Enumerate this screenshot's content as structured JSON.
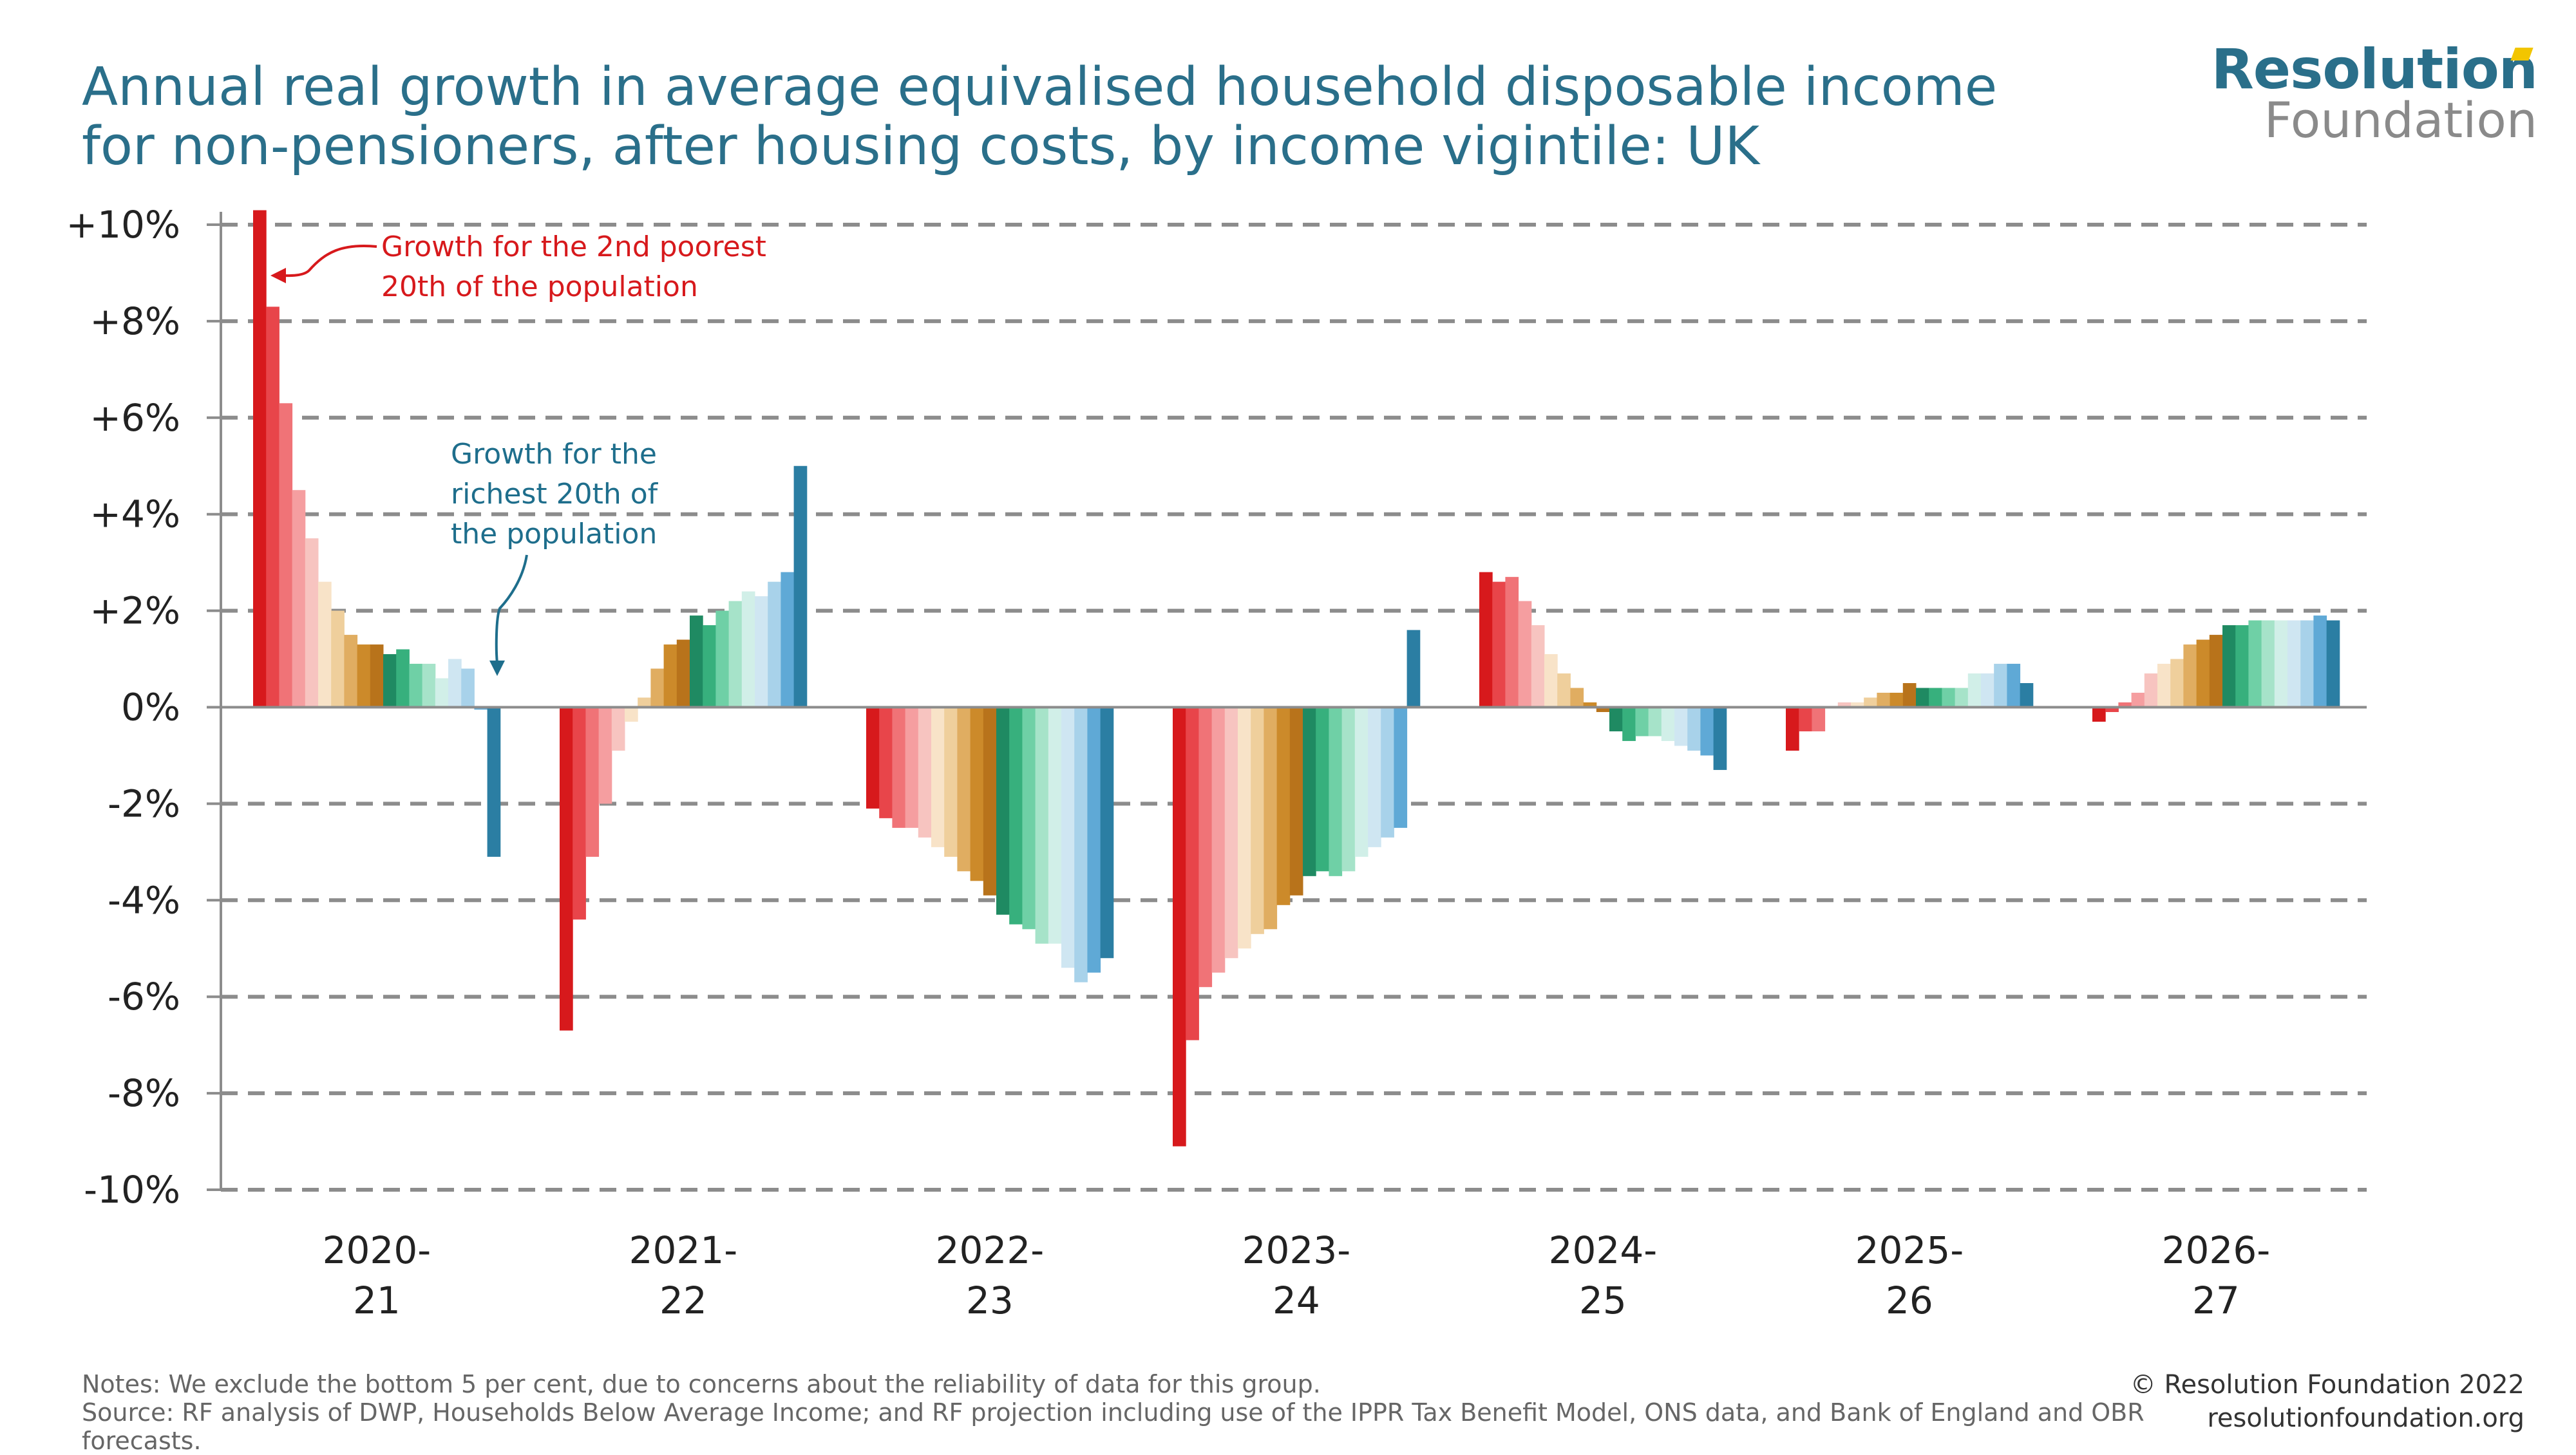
{
  "title": "Annual real growth in average equivalised household disposable income for non-pensioners, after housing costs, by income vigintile: UK",
  "logo": {
    "line1": "Resolution",
    "line2": "Foundation"
  },
  "footer": {
    "notes": "Notes: We exclude the bottom 5 per cent, due to concerns about the reliability of data for this group.",
    "source": "Source: RF analysis of DWP, Households Below Average Income; and RF projection including use of the IPPR Tax Benefit Model, ONS data, and Bank of England and OBR forecasts.",
    "copyright": "© Resolution Foundation 2022",
    "website": "resolutionfoundation.org"
  },
  "chart_data": {
    "type": "bar",
    "categories": [
      [
        "2020-",
        "21"
      ],
      [
        "2021-",
        "22"
      ],
      [
        "2022-",
        "23"
      ],
      [
        "2023-",
        "24"
      ],
      [
        "2024-",
        "25"
      ],
      [
        "2025-",
        "26"
      ],
      [
        "2026-",
        "27"
      ]
    ],
    "ylim": [
      -10,
      10
    ],
    "yticks": [
      "+10%",
      "+8%",
      "+6%",
      "+4%",
      "+2%",
      "0%",
      "-2%",
      "-4%",
      "-6%",
      "-8%",
      "-10%"
    ],
    "ytick_values": [
      10,
      8,
      6,
      4,
      2,
      0,
      -2,
      -4,
      -6,
      -8,
      -10
    ],
    "grid": true,
    "bars_per_group": 19,
    "colors": [
      "#d7191c",
      "#e8454a",
      "#f07377",
      "#f59ea0",
      "#f7c4c0",
      "#f8e3c8",
      "#efcf9c",
      "#e0ad61",
      "#cc8a2a",
      "#b8731b",
      "#1f8a62",
      "#37b07d",
      "#6fd0a6",
      "#a6e3c9",
      "#d1efe8",
      "#cfe6f2",
      "#a8d2ea",
      "#5fa9d6",
      "#2b7ea3"
    ],
    "values": [
      [
        10.3,
        8.3,
        6.3,
        4.5,
        3.5,
        2.6,
        2.0,
        1.5,
        1.3,
        1.3,
        1.1,
        1.2,
        0.9,
        0.9,
        0.6,
        1.0,
        0.8,
        -0.05,
        -3.1
      ],
      [
        -6.7,
        -4.4,
        -3.1,
        -2.0,
        -0.9,
        -0.3,
        0.2,
        0.8,
        1.3,
        1.4,
        1.9,
        1.7,
        2.0,
        2.2,
        2.4,
        2.3,
        2.6,
        2.8,
        5.0
      ],
      [
        -2.1,
        -2.3,
        -2.5,
        -2.5,
        -2.7,
        -2.9,
        -3.1,
        -3.4,
        -3.6,
        -3.9,
        -4.3,
        -4.5,
        -4.6,
        -4.9,
        -4.9,
        -5.4,
        -5.7,
        -5.5,
        -5.2
      ],
      [
        -9.1,
        -6.9,
        -5.8,
        -5.5,
        -5.2,
        -5.0,
        -4.7,
        -4.6,
        -4.1,
        -3.9,
        -3.5,
        -3.4,
        -3.5,
        -3.4,
        -3.1,
        -2.9,
        -2.7,
        -2.5,
        1.6
      ],
      [
        2.8,
        2.6,
        2.7,
        2.2,
        1.7,
        1.1,
        0.7,
        0.4,
        0.1,
        -0.1,
        -0.5,
        -0.7,
        -0.6,
        -0.6,
        -0.7,
        -0.8,
        -0.9,
        -1.0,
        -1.3
      ],
      [
        -0.9,
        -0.5,
        -0.5,
        0.0,
        0.1,
        0.1,
        0.2,
        0.3,
        0.3,
        0.5,
        0.4,
        0.4,
        0.4,
        0.4,
        0.7,
        0.7,
        0.9,
        0.9,
        0.5
      ],
      [
        -0.3,
        -0.1,
        0.1,
        0.3,
        0.7,
        0.9,
        1.0,
        1.3,
        1.4,
        1.5,
        1.7,
        1.7,
        1.8,
        1.8,
        1.8,
        1.8,
        1.8,
        1.9,
        1.8
      ]
    ],
    "annotations": [
      {
        "text": [
          "Growth for the 2nd poorest",
          "20th of the population"
        ],
        "color": "#d7191c"
      },
      {
        "text": [
          "Growth for the",
          "richest 20th of",
          "the population"
        ],
        "color": "#1e6e8c"
      }
    ]
  }
}
